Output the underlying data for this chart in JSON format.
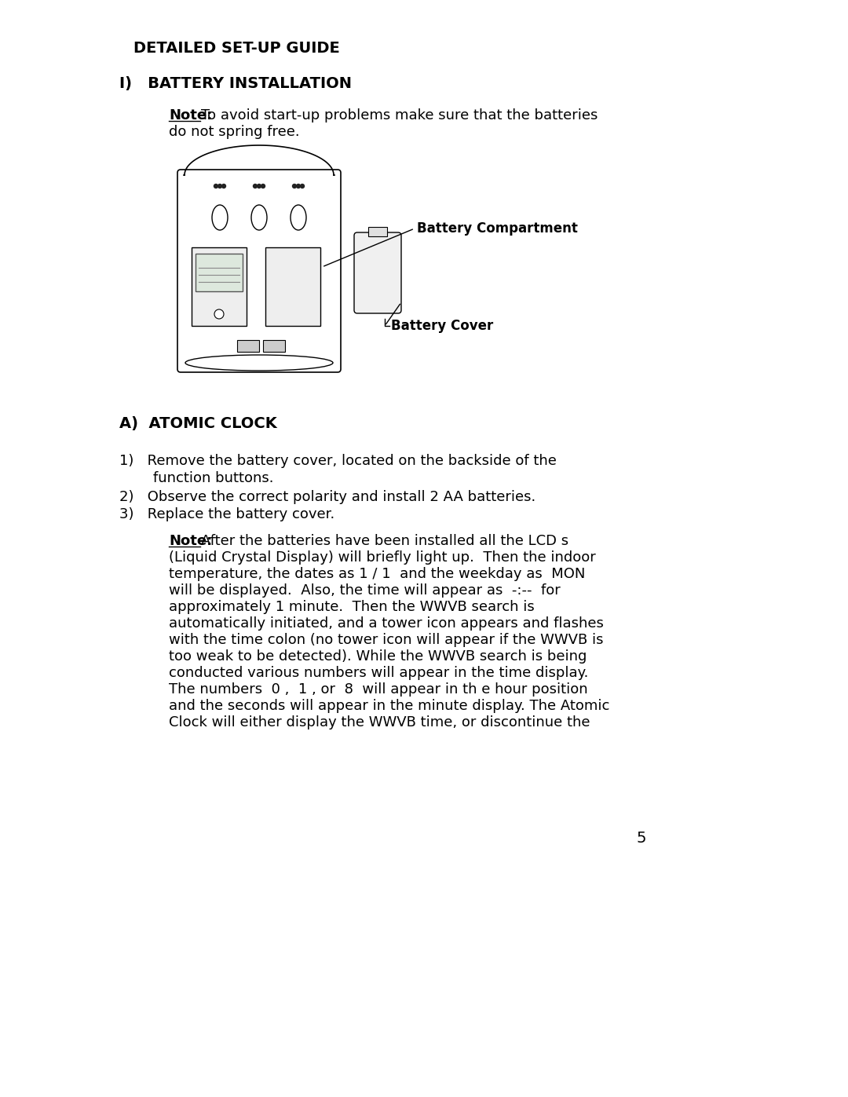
{
  "bg_color": "#ffffff",
  "title": "DETAILED SET-UP GUIDE",
  "section_i": "I)   BATTERY INSTALLATION",
  "note1_line1": "To avoid start-up problems make sure that the batteries",
  "note1_line2": "do not spring free.",
  "label_battery_compartment": "Battery Compartment",
  "label_battery_cover": "Battery Cover",
  "section_a": "A)  ATOMIC CLOCK",
  "step1_line1": "1)   Remove the battery cover, located on the backside of the",
  "step1_line2": "       function buttons.",
  "step2": "2)   Observe the correct polarity and install 2 AA batteries.",
  "step3": "3)   Replace the battery cover.",
  "note2_lines": [
    "After the batteries have been installed all the LCD s",
    "(Liquid Crystal Display) will briefly light up.  Then the indoor",
    "temperature, the dates as 1 / 1  and the weekday as  MON",
    "will be displayed.  Also, the time will appear as  -:--  for",
    "approximately 1 minute.  Then the WWVB search is",
    "automatically initiated, and a tower icon appears and flashes",
    "with the time colon (no tower icon will appear if the WWVB is",
    "too weak to be detected). While the WWVB search is being",
    "conducted various numbers will appear in the time display.",
    "The numbers  0 ,  1 , or  8  will appear in th e hour position",
    "and the seconds will appear in the minute display. The Atomic",
    "Clock will either display the WWVB time, or discontinue the"
  ],
  "page_number": "5"
}
